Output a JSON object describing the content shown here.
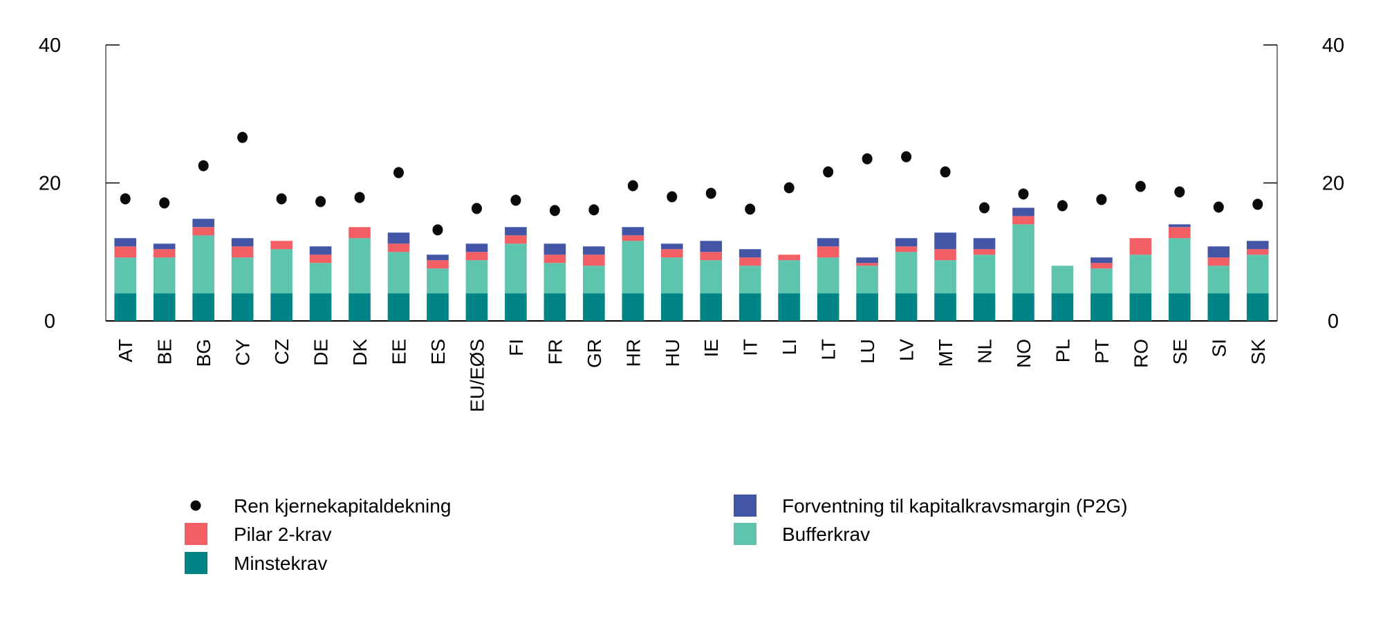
{
  "chart_data": {
    "type": "bar",
    "subtype": "stacked-bar-with-dots",
    "ylim": [
      0,
      40
    ],
    "yticks": [
      0,
      20,
      40
    ],
    "grid": false,
    "legend_position": "bottom",
    "categories": [
      "AT",
      "BE",
      "BG",
      "CY",
      "CZ",
      "DE",
      "DK",
      "EE",
      "ES",
      "EU/EØS",
      "FI",
      "FR",
      "GR",
      "HR",
      "HU",
      "IE",
      "IT",
      "LI",
      "LT",
      "LU",
      "LV",
      "MT",
      "NL",
      "NO",
      "PL",
      "PT",
      "RO",
      "SE",
      "SI",
      "SK"
    ],
    "series": [
      {
        "name": "Minstekrav",
        "kind": "bar",
        "color": "#008486",
        "values": [
          4.0,
          4.0,
          4.0,
          4.0,
          4.0,
          4.0,
          4.0,
          4.0,
          4.0,
          4.0,
          4.0,
          4.0,
          4.0,
          4.0,
          4.0,
          4.0,
          4.0,
          4.0,
          4.0,
          4.0,
          4.0,
          4.0,
          4.0,
          4.0,
          4.0,
          4.0,
          4.0,
          4.0,
          4.0,
          4.0
        ]
      },
      {
        "name": "Bufferkrav",
        "kind": "bar",
        "color": "#5fc4ae",
        "values": [
          5.2,
          5.2,
          8.4,
          5.2,
          6.4,
          4.4,
          8.0,
          6.0,
          3.6,
          4.8,
          7.2,
          4.4,
          4.0,
          7.6,
          5.2,
          4.8,
          4.0,
          4.8,
          5.2,
          4.0,
          6.0,
          4.8,
          5.6,
          10.0,
          4.0,
          3.6,
          5.6,
          8.0,
          4.0,
          5.6
        ]
      },
      {
        "name": "Pilar 2-krav",
        "kind": "bar",
        "color": "#f26065",
        "values": [
          1.6,
          1.2,
          1.2,
          1.6,
          1.2,
          1.2,
          1.6,
          1.2,
          1.2,
          1.2,
          1.2,
          1.2,
          1.6,
          0.8,
          1.2,
          1.2,
          1.2,
          0.8,
          1.6,
          0.4,
          0.8,
          1.6,
          0.8,
          1.2,
          0,
          0.8,
          2.4,
          1.6,
          1.2,
          0.8
        ]
      },
      {
        "name": "Forventning til kapitalkravsmargin (P2G)",
        "kind": "bar",
        "color": "#4356a6",
        "values": [
          1.2,
          0.8,
          1.2,
          1.2,
          0,
          1.2,
          0,
          1.6,
          0.8,
          1.2,
          1.2,
          1.6,
          1.2,
          1.2,
          0.8,
          1.6,
          1.2,
          0,
          1.2,
          0.8,
          1.2,
          2.4,
          1.6,
          1.2,
          0,
          0.8,
          0,
          0.4,
          1.6,
          1.2
        ]
      },
      {
        "name": "Ren kjernekapitaldekning",
        "kind": "dot",
        "color": "#000000",
        "values": [
          17.7,
          17.1,
          22.5,
          26.6,
          17.7,
          17.3,
          17.9,
          21.5,
          13.2,
          16.3,
          17.5,
          16.0,
          16.1,
          19.6,
          18.0,
          18.5,
          16.2,
          19.3,
          21.6,
          23.5,
          23.8,
          21.6,
          16.4,
          18.4,
          16.7,
          17.6,
          19.5,
          18.7,
          16.5,
          16.9
        ]
      }
    ],
    "legend": {
      "left": [
        "Ren kjernekapitaldekning",
        "Pilar 2-krav",
        "Minstekrav"
      ],
      "right": [
        "Forventning til kapitalkravsmargin (P2G)",
        "Bufferkrav"
      ]
    }
  }
}
